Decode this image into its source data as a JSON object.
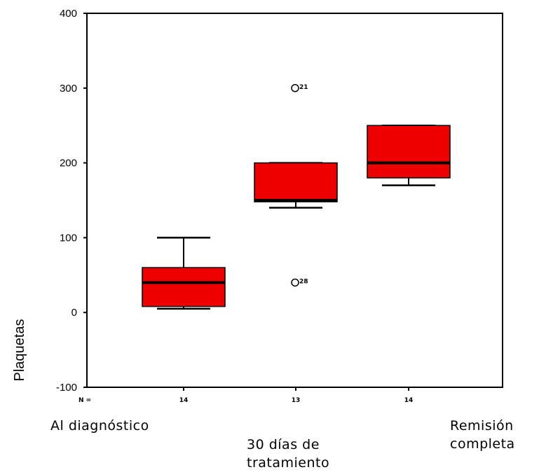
{
  "chart_data": {
    "type": "boxplot",
    "ylabel": "Plaquetas",
    "ylim": [
      -100,
      400
    ],
    "yticks": [
      400,
      300,
      200,
      100,
      0,
      -100
    ],
    "n_axis_label": "N =",
    "box_color": "#ee0000",
    "categories": [
      {
        "label_lines": [
          "Al diagnóstico"
        ],
        "n": "14",
        "min": 5,
        "q1": 8,
        "median": 40,
        "q3": 60,
        "max": 100,
        "outliers": []
      },
      {
        "label_lines": [
          "30 días de",
          "tratamiento"
        ],
        "n": "13",
        "min": 140,
        "q1": 148,
        "median": 150,
        "q3": 200,
        "max": 200,
        "outliers": [
          {
            "value": 300,
            "label": "21"
          },
          {
            "value": 40,
            "label": "28"
          }
        ]
      },
      {
        "label_lines": [
          "Remisión",
          "completa"
        ],
        "n": "14",
        "min": 170,
        "q1": 180,
        "median": 200,
        "q3": 250,
        "max": 250,
        "outliers": []
      }
    ]
  }
}
